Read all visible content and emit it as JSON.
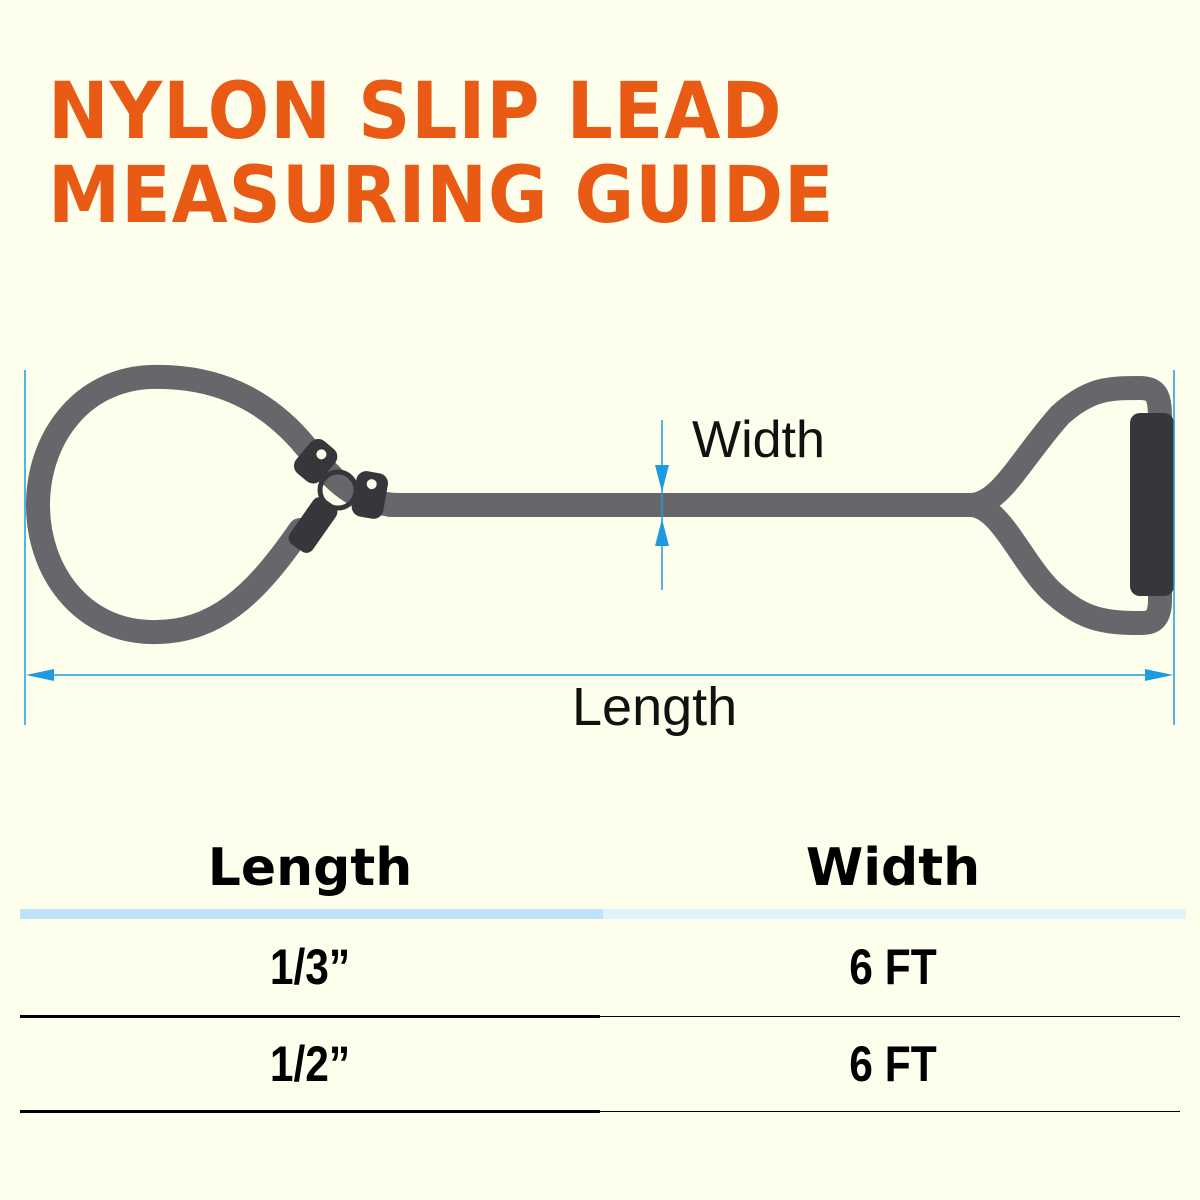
{
  "title": {
    "line1": "NYLON SLIP LEAD",
    "line2": "MEASURING GUIDE"
  },
  "diagram": {
    "width_label": "Width",
    "length_label": "Length"
  },
  "colors": {
    "accent": "#E95B14",
    "measure": "#1E9BE0",
    "leash": "#68666B",
    "hardware": "#37363A",
    "background": "#FDFEEC"
  },
  "table": {
    "headers": [
      "Length",
      "Width"
    ],
    "rows": [
      [
        "1/3”",
        "6 FT"
      ],
      [
        "1/2”",
        "6 FT"
      ]
    ]
  }
}
